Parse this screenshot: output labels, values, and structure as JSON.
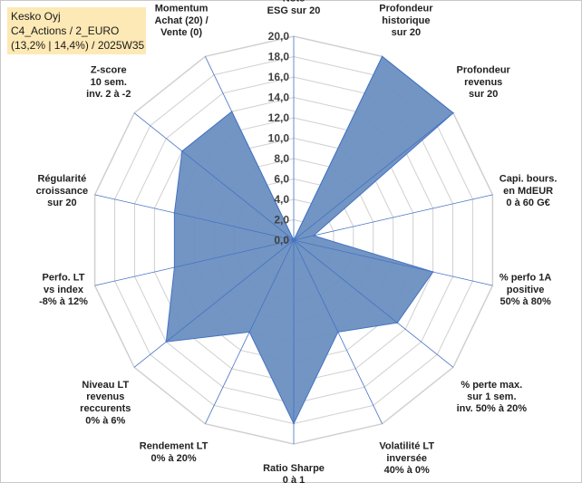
{
  "header": {
    "line1": "Kesko Oyj",
    "line2": "C4_Actions / 2_EURO",
    "line3": "(13,2% | 14,4%) / 2025W35"
  },
  "colors": {
    "fill": "#6a8fc0",
    "stroke": "#4472c4",
    "grid": "#d0d0d0",
    "spoke": "#4472c4",
    "title_bg": "#fde9b5"
  },
  "chart_data": {
    "type": "radar",
    "rmin": 0,
    "rmax": 20,
    "grid": true,
    "ticks": [
      "0,0",
      "2,0",
      "4,0",
      "6,0",
      "8,0",
      "10,0",
      "12,0",
      "14,0",
      "16,0",
      "18,0",
      "20,0"
    ],
    "categories": [
      [
        "Note",
        "ESG sur 20"
      ],
      [
        "Profondeur",
        "historique",
        "sur 20"
      ],
      [
        "Profondeur",
        "revenus",
        "sur 20"
      ],
      [
        "Capi. bours.",
        "en MdEUR",
        "0 à 60 G€"
      ],
      [
        "% perfo 1A",
        "positive",
        "50% à 80%"
      ],
      [
        "% perte max.",
        "sur 1 sem.",
        "inv. 50% à 20%"
      ],
      [
        "Volatilité LT",
        "inversée",
        "40% à 0%"
      ],
      [
        "Ratio Sharpe",
        "0 à 1"
      ],
      [
        "Rendement LT",
        "0% à 20%"
      ],
      [
        "Niveau LT",
        "revenus",
        "reccurents",
        "0% à 6%"
      ],
      [
        "Perfo. LT",
        "vs index",
        "-8% à 12%"
      ],
      [
        "Régularité",
        "croissance",
        "sur 20"
      ],
      [
        "Z-score",
        "10 sem.",
        "inv. 2 à -2"
      ],
      [
        "Momentum",
        "Achat (20) /",
        "Vente (0)"
      ]
    ],
    "values": [
      0,
      20,
      20,
      2,
      14,
      13,
      10,
      18,
      10,
      16,
      12,
      12,
      14,
      14
    ]
  }
}
